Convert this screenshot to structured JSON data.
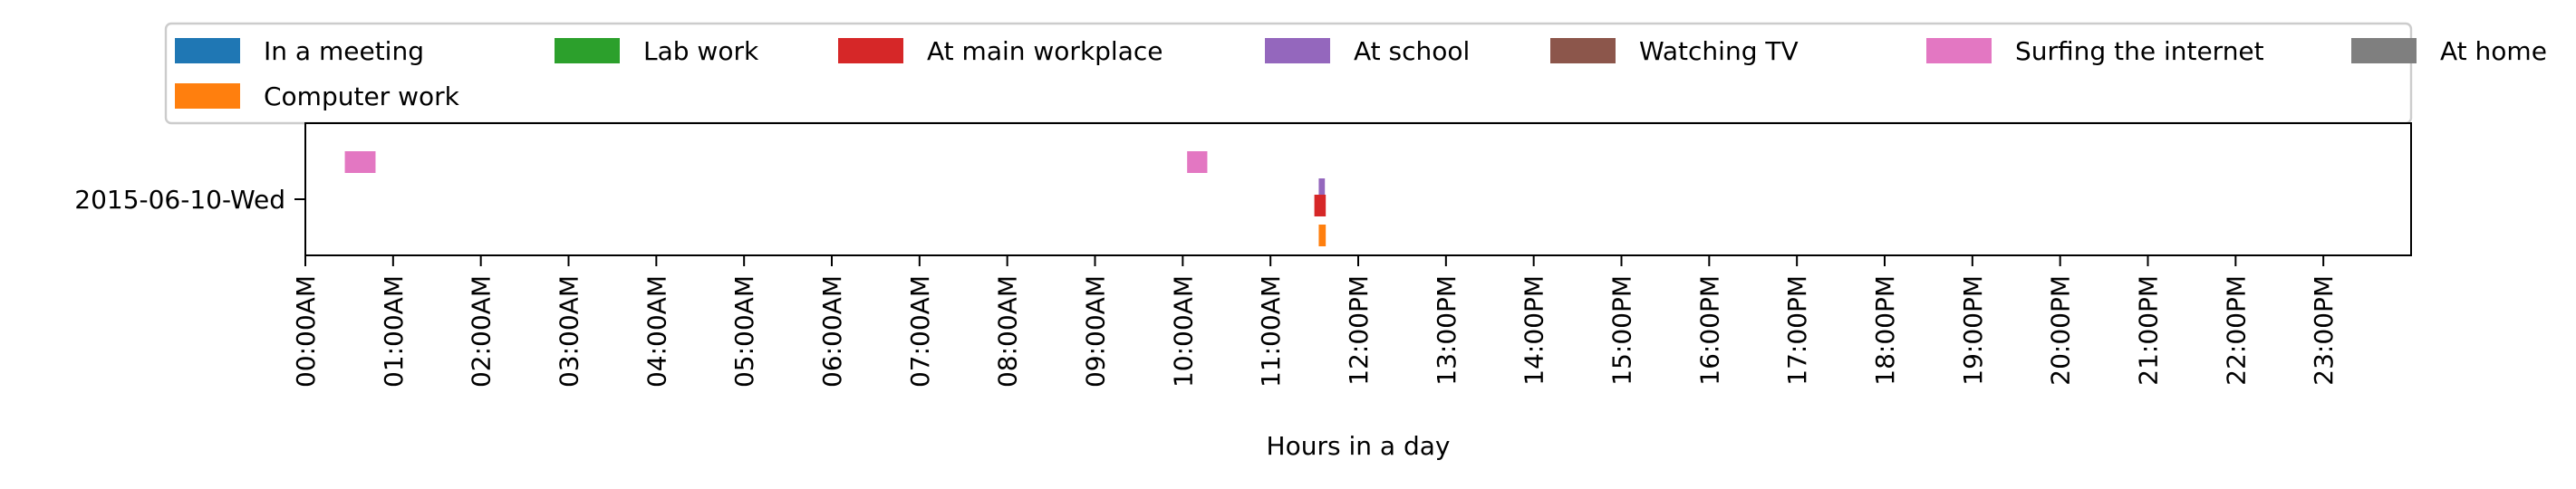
{
  "chart_data": {
    "type": "bar",
    "orientation": "horizontal-timeline",
    "title": "",
    "xlabel": "Hours in a day",
    "ylabel": "",
    "xlim": [
      0,
      24
    ],
    "categories": [
      "2015-06-10-Wed"
    ],
    "x_ticks": [
      {
        "value": 0,
        "label": "00:00AM"
      },
      {
        "value": 1,
        "label": "01:00AM"
      },
      {
        "value": 2,
        "label": "02:00AM"
      },
      {
        "value": 3,
        "label": "03:00AM"
      },
      {
        "value": 4,
        "label": "04:00AM"
      },
      {
        "value": 5,
        "label": "05:00AM"
      },
      {
        "value": 6,
        "label": "06:00AM"
      },
      {
        "value": 7,
        "label": "07:00AM"
      },
      {
        "value": 8,
        "label": "08:00AM"
      },
      {
        "value": 9,
        "label": "09:00AM"
      },
      {
        "value": 10,
        "label": "10:00AM"
      },
      {
        "value": 11,
        "label": "11:00AM"
      },
      {
        "value": 12,
        "label": "12:00PM"
      },
      {
        "value": 13,
        "label": "13:00PM"
      },
      {
        "value": 14,
        "label": "14:00PM"
      },
      {
        "value": 15,
        "label": "15:00PM"
      },
      {
        "value": 16,
        "label": "16:00PM"
      },
      {
        "value": 17,
        "label": "17:00PM"
      },
      {
        "value": 18,
        "label": "18:00PM"
      },
      {
        "value": 19,
        "label": "19:00PM"
      },
      {
        "value": 20,
        "label": "20:00PM"
      },
      {
        "value": 21,
        "label": "21:00PM"
      },
      {
        "value": 22,
        "label": "22:00PM"
      },
      {
        "value": 23,
        "label": "23:00PM"
      }
    ],
    "legend_position": "top",
    "legend_order": [
      "In a meeting",
      "Lab work",
      "At main workplace",
      "At school",
      "Watching TV",
      "Surfing the internet",
      "At home",
      "Computer work"
    ],
    "grid": false,
    "series": [
      {
        "name": "In a meeting",
        "color": "#1f77b4",
        "lane": 0,
        "intervals": []
      },
      {
        "name": "Computer work",
        "color": "#ff7f0e",
        "lane": 3,
        "intervals": [
          [
            11.55,
            11.63
          ]
        ]
      },
      {
        "name": "Lab work",
        "color": "#2ca02c",
        "lane": 0,
        "intervals": []
      },
      {
        "name": "At main workplace",
        "color": "#d62728",
        "lane": 2,
        "intervals": [
          [
            11.5,
            11.63
          ]
        ]
      },
      {
        "name": "At school",
        "color": "#9467bd",
        "lane": 1,
        "intervals": [
          [
            11.55,
            11.62
          ]
        ]
      },
      {
        "name": "Watching TV",
        "color": "#8c564b",
        "lane": 0,
        "intervals": []
      },
      {
        "name": "Surfing the internet",
        "color": "#e377c2",
        "lane": 0,
        "intervals": [
          [
            0.45,
            0.8
          ],
          [
            10.05,
            10.28
          ]
        ]
      },
      {
        "name": "At home",
        "color": "#7f7f7f",
        "lane": 0,
        "intervals": []
      }
    ]
  }
}
